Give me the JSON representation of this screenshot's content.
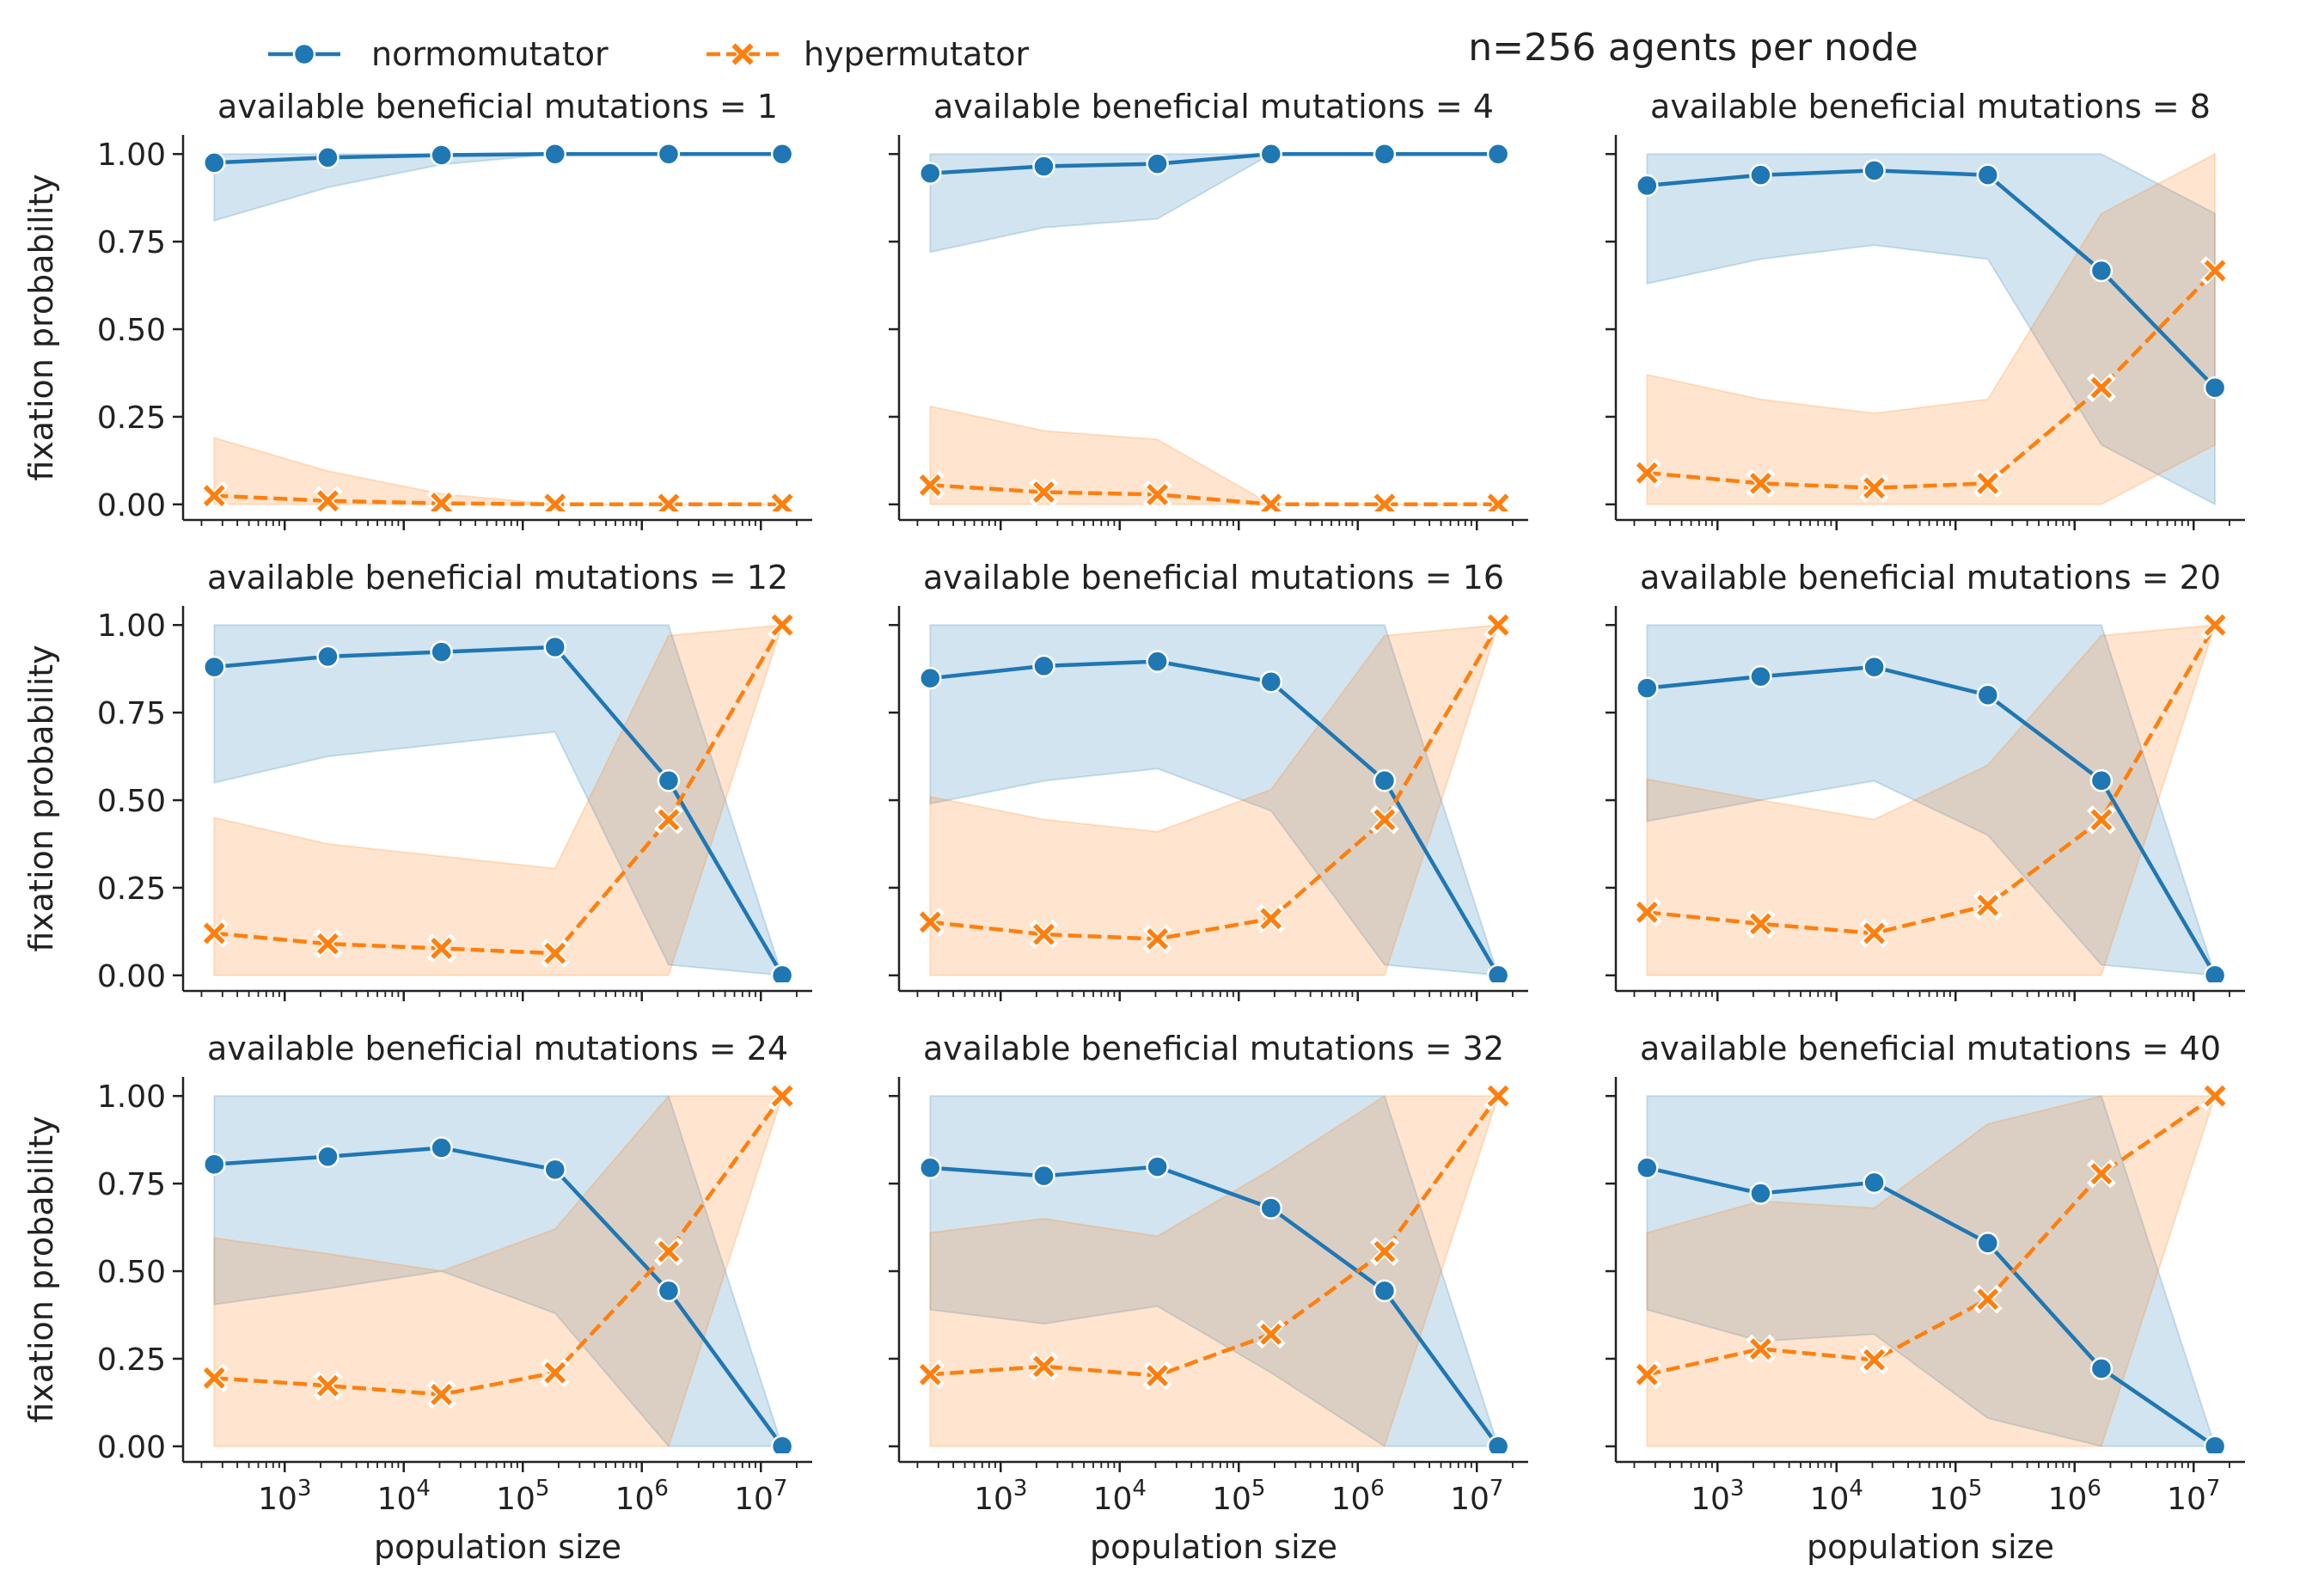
{
  "figure_title": "n=256 agents per node",
  "legend": {
    "placement": "top-left",
    "entries": [
      {
        "label": "normomutator",
        "color": "#1f77b4",
        "marker": "circle",
        "line": "solid"
      },
      {
        "label": "hypermutator",
        "color": "#ff7f0e",
        "marker": "x",
        "line": "dashed"
      }
    ]
  },
  "colors": {
    "normomutator": "#1f77b4",
    "hypermutator": "#ff7f0e"
  },
  "chart_data": [
    {
      "type": "line",
      "title": "available beneficial mutations = 1",
      "xlabel": "",
      "ylabel": "fixation probability",
      "x": [
        256,
        2304,
        20736,
        186624,
        1679616,
        15116544
      ],
      "x_scale": "log",
      "xlim": [
        140,
        27000000
      ],
      "ylim": [
        -0.02,
        1.03
      ],
      "yticks": [
        "0.00",
        "0.25",
        "0.50",
        "0.75",
        "1.00"
      ],
      "xticks": [],
      "series": [
        {
          "name": "normomutator",
          "values": [
            0.975,
            0.99,
            0.997,
            1.0,
            1.0,
            1.0
          ],
          "ci_low": [
            0.81,
            0.905,
            0.97,
            1.0,
            1.0,
            1.0
          ],
          "ci_high": [
            1.0,
            1.0,
            1.0,
            1.0,
            1.0,
            1.0
          ]
        },
        {
          "name": "hypermutator",
          "values": [
            0.025,
            0.01,
            0.003,
            0.0,
            0.0,
            0.0
          ],
          "ci_low": [
            0.0,
            0.0,
            0.0,
            0.0,
            0.0,
            0.0
          ],
          "ci_high": [
            0.19,
            0.095,
            0.03,
            0.0,
            0.0,
            0.0
          ]
        }
      ]
    },
    {
      "type": "line",
      "title": "available beneficial mutations = 4",
      "xlabel": "",
      "ylabel": "",
      "x": [
        256,
        2304,
        20736,
        186624,
        1679616,
        15116544
      ],
      "x_scale": "log",
      "xlim": [
        140,
        27000000
      ],
      "ylim": [
        -0.02,
        1.03
      ],
      "yticks": [],
      "xticks": [],
      "series": [
        {
          "name": "normomutator",
          "values": [
            0.945,
            0.965,
            0.972,
            1.0,
            1.0,
            1.0
          ],
          "ci_low": [
            0.72,
            0.79,
            0.815,
            1.0,
            1.0,
            1.0
          ],
          "ci_high": [
            1.0,
            1.0,
            1.0,
            1.0,
            1.0,
            1.0
          ]
        },
        {
          "name": "hypermutator",
          "values": [
            0.055,
            0.035,
            0.028,
            0.0,
            0.0,
            0.0
          ],
          "ci_low": [
            0.0,
            0.0,
            0.0,
            0.0,
            0.0,
            0.0
          ],
          "ci_high": [
            0.28,
            0.21,
            0.185,
            0.0,
            0.0,
            0.0
          ]
        }
      ]
    },
    {
      "type": "line",
      "title": "available beneficial mutations = 8",
      "xlabel": "",
      "ylabel": "",
      "x": [
        256,
        2304,
        20736,
        186624,
        1679616,
        15116544
      ],
      "x_scale": "log",
      "xlim": [
        140,
        27000000
      ],
      "ylim": [
        -0.02,
        1.03
      ],
      "yticks": [],
      "xticks": [],
      "series": [
        {
          "name": "normomutator",
          "values": [
            0.91,
            0.94,
            0.953,
            0.94,
            0.667,
            0.333
          ],
          "ci_low": [
            0.63,
            0.7,
            0.74,
            0.7,
            0.17,
            0.0
          ],
          "ci_high": [
            1.0,
            1.0,
            1.0,
            1.0,
            1.0,
            0.83
          ]
        },
        {
          "name": "hypermutator",
          "values": [
            0.09,
            0.06,
            0.047,
            0.06,
            0.333,
            0.667
          ],
          "ci_low": [
            0.0,
            0.0,
            0.0,
            0.0,
            0.0,
            0.17
          ],
          "ci_high": [
            0.37,
            0.3,
            0.26,
            0.3,
            0.83,
            1.0
          ]
        }
      ]
    },
    {
      "type": "line",
      "title": "available beneficial mutations = 12",
      "xlabel": "",
      "ylabel": "fixation probability",
      "x": [
        256,
        2304,
        20736,
        186624,
        1679616,
        15116544
      ],
      "x_scale": "log",
      "xlim": [
        140,
        27000000
      ],
      "ylim": [
        -0.02,
        1.03
      ],
      "yticks": [
        "0.00",
        "0.25",
        "0.50",
        "0.75",
        "1.00"
      ],
      "xticks": [],
      "series": [
        {
          "name": "normomutator",
          "values": [
            0.88,
            0.91,
            0.923,
            0.937,
            0.556,
            0.0
          ],
          "ci_low": [
            0.55,
            0.625,
            0.66,
            0.695,
            0.03,
            0.0
          ],
          "ci_high": [
            1.0,
            1.0,
            1.0,
            1.0,
            1.0,
            0.0
          ]
        },
        {
          "name": "hypermutator",
          "values": [
            0.12,
            0.09,
            0.077,
            0.063,
            0.444,
            1.0
          ],
          "ci_low": [
            0.0,
            0.0,
            0.0,
            0.0,
            0.0,
            1.0
          ],
          "ci_high": [
            0.45,
            0.375,
            0.34,
            0.305,
            0.97,
            1.0
          ]
        }
      ]
    },
    {
      "type": "line",
      "title": "available beneficial mutations = 16",
      "xlabel": "",
      "ylabel": "",
      "x": [
        256,
        2304,
        20736,
        186624,
        1679616,
        15116544
      ],
      "x_scale": "log",
      "xlim": [
        140,
        27000000
      ],
      "ylim": [
        -0.02,
        1.03
      ],
      "yticks": [],
      "xticks": [],
      "series": [
        {
          "name": "normomutator",
          "values": [
            0.848,
            0.883,
            0.896,
            0.838,
            0.556,
            0.0
          ],
          "ci_low": [
            0.49,
            0.555,
            0.59,
            0.47,
            0.03,
            0.0
          ],
          "ci_high": [
            1.0,
            1.0,
            1.0,
            1.0,
            1.0,
            0.0
          ]
        },
        {
          "name": "hypermutator",
          "values": [
            0.152,
            0.117,
            0.104,
            0.162,
            0.444,
            1.0
          ],
          "ci_low": [
            0.0,
            0.0,
            0.0,
            0.0,
            0.0,
            1.0
          ],
          "ci_high": [
            0.51,
            0.445,
            0.41,
            0.53,
            0.97,
            1.0
          ]
        }
      ]
    },
    {
      "type": "line",
      "title": "available beneficial mutations = 20",
      "xlabel": "",
      "ylabel": "",
      "x": [
        256,
        2304,
        20736,
        186624,
        1679616,
        15116544
      ],
      "x_scale": "log",
      "xlim": [
        140,
        27000000
      ],
      "ylim": [
        -0.02,
        1.03
      ],
      "yticks": [],
      "xticks": [],
      "series": [
        {
          "name": "normomutator",
          "values": [
            0.82,
            0.853,
            0.88,
            0.8,
            0.556,
            0.0
          ],
          "ci_low": [
            0.44,
            0.5,
            0.555,
            0.4,
            0.03,
            0.0
          ],
          "ci_high": [
            1.0,
            1.0,
            1.0,
            1.0,
            1.0,
            0.0
          ]
        },
        {
          "name": "hypermutator",
          "values": [
            0.18,
            0.147,
            0.12,
            0.2,
            0.444,
            1.0
          ],
          "ci_low": [
            0.0,
            0.0,
            0.0,
            0.0,
            0.0,
            1.0
          ],
          "ci_high": [
            0.56,
            0.5,
            0.445,
            0.6,
            0.97,
            1.0
          ]
        }
      ]
    },
    {
      "type": "line",
      "title": "available beneficial mutations = 24",
      "xlabel": "population size",
      "ylabel": "fixation probability",
      "x": [
        256,
        2304,
        20736,
        186624,
        1679616,
        15116544
      ],
      "x_scale": "log",
      "xlim": [
        140,
        27000000
      ],
      "ylim": [
        -0.02,
        1.03
      ],
      "yticks": [
        "0.00",
        "0.25",
        "0.50",
        "0.75",
        "1.00"
      ],
      "xticks": [
        "10^3",
        "10^4",
        "10^5",
        "10^6",
        "10^7"
      ],
      "series": [
        {
          "name": "normomutator",
          "values": [
            0.805,
            0.827,
            0.852,
            0.79,
            0.444,
            0.0
          ],
          "ci_low": [
            0.405,
            0.45,
            0.5,
            0.38,
            0.0,
            0.0
          ],
          "ci_high": [
            1.0,
            1.0,
            1.0,
            1.0,
            1.0,
            0.0
          ]
        },
        {
          "name": "hypermutator",
          "values": [
            0.195,
            0.173,
            0.148,
            0.21,
            0.556,
            1.0
          ],
          "ci_low": [
            0.0,
            0.0,
            0.0,
            0.0,
            0.0,
            1.0
          ],
          "ci_high": [
            0.595,
            0.55,
            0.5,
            0.62,
            1.0,
            1.0
          ]
        }
      ]
    },
    {
      "type": "line",
      "title": "available beneficial mutations = 32",
      "xlabel": "population size",
      "ylabel": "",
      "x": [
        256,
        2304,
        20736,
        186624,
        1679616,
        15116544
      ],
      "x_scale": "log",
      "xlim": [
        140,
        27000000
      ],
      "ylim": [
        -0.02,
        1.03
      ],
      "yticks": [],
      "xticks": [
        "10^3",
        "10^4",
        "10^5",
        "10^6",
        "10^7"
      ],
      "series": [
        {
          "name": "normomutator",
          "values": [
            0.795,
            0.772,
            0.798,
            0.68,
            0.444,
            0.0
          ],
          "ci_low": [
            0.39,
            0.35,
            0.4,
            0.21,
            0.0,
            0.0
          ],
          "ci_high": [
            1.0,
            1.0,
            1.0,
            1.0,
            1.0,
            0.0
          ]
        },
        {
          "name": "hypermutator",
          "values": [
            0.205,
            0.228,
            0.202,
            0.32,
            0.556,
            1.0
          ],
          "ci_low": [
            0.0,
            0.0,
            0.0,
            0.0,
            0.0,
            1.0
          ],
          "ci_high": [
            0.61,
            0.65,
            0.6,
            0.79,
            1.0,
            1.0
          ]
        }
      ]
    },
    {
      "type": "line",
      "title": "available beneficial mutations = 40",
      "xlabel": "population size",
      "ylabel": "",
      "x": [
        256,
        2304,
        20736,
        186624,
        1679616,
        15116544
      ],
      "x_scale": "log",
      "xlim": [
        140,
        27000000
      ],
      "ylim": [
        -0.02,
        1.03
      ],
      "yticks": [],
      "xticks": [
        "10^3",
        "10^4",
        "10^5",
        "10^6",
        "10^7"
      ],
      "series": [
        {
          "name": "normomutator",
          "values": [
            0.795,
            0.722,
            0.753,
            0.58,
            0.222,
            0.0
          ],
          "ci_low": [
            0.39,
            0.3,
            0.32,
            0.08,
            0.0,
            0.0
          ],
          "ci_high": [
            1.0,
            1.0,
            1.0,
            1.0,
            1.0,
            0.0
          ]
        },
        {
          "name": "hypermutator",
          "values": [
            0.205,
            0.278,
            0.247,
            0.42,
            0.778,
            1.0
          ],
          "ci_low": [
            0.0,
            0.0,
            0.0,
            0.0,
            0.0,
            1.0
          ],
          "ci_high": [
            0.61,
            0.7,
            0.68,
            0.92,
            1.0,
            1.0
          ]
        }
      ]
    }
  ]
}
